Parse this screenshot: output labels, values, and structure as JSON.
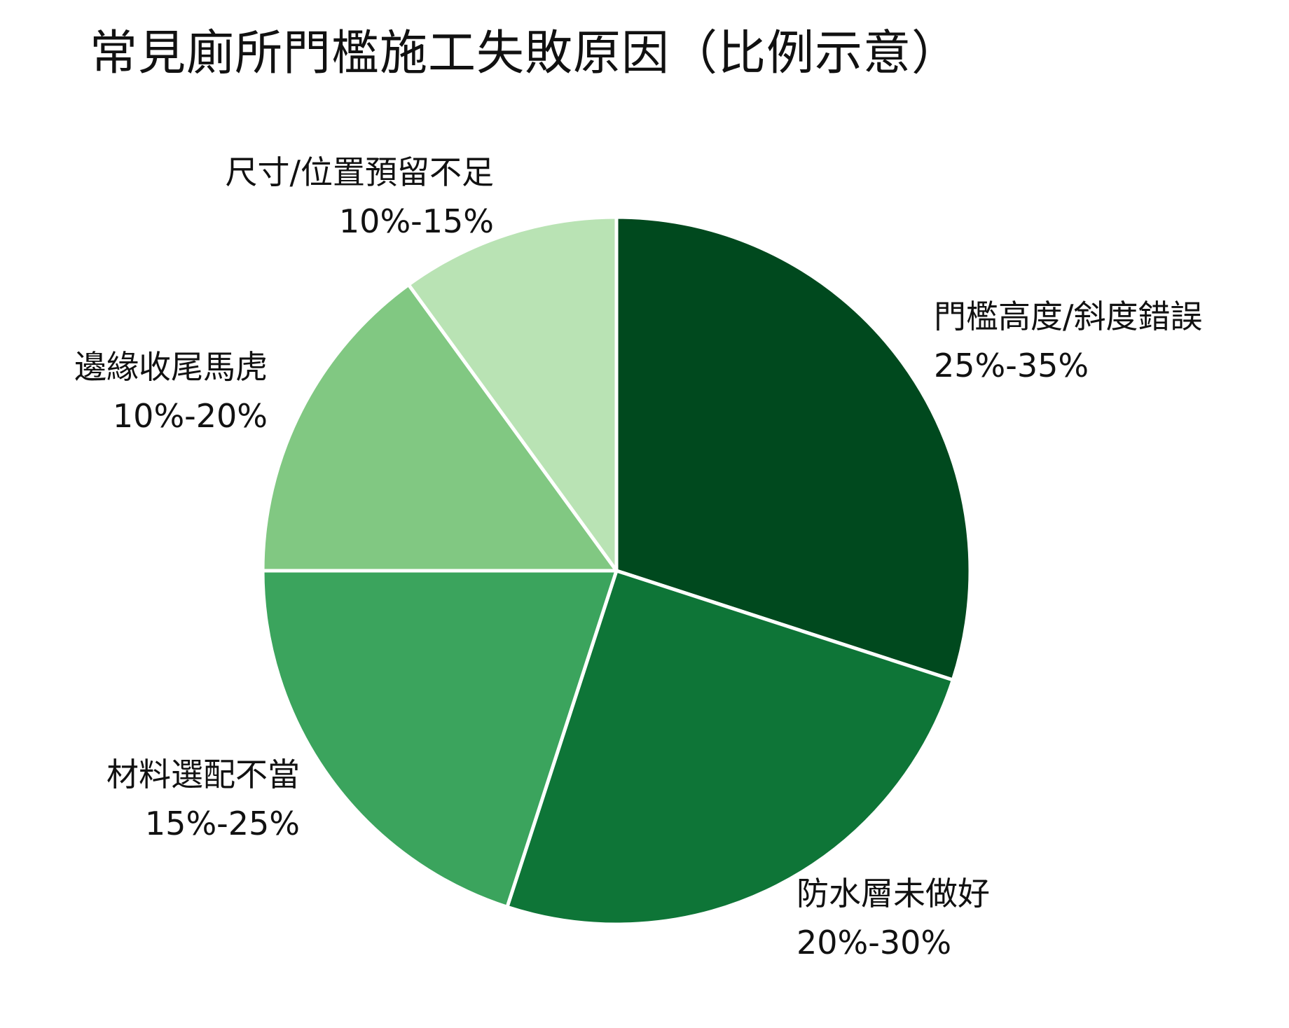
{
  "chart_data": {
    "type": "pie",
    "title": "常見廁所門檻施工失敗原因（比例示意）",
    "slices": [
      {
        "name": "門檻高度/斜度錯誤",
        "range": "25%-35%",
        "value": 30,
        "color": "#00491e"
      },
      {
        "name": "防水層未做好",
        "range": "20%-30%",
        "value": 25,
        "color": "#0e7537"
      },
      {
        "name": "材料選配不當",
        "range": "15%-25%",
        "value": 20,
        "color": "#3ba45d"
      },
      {
        "name": "邊緣收尾馬虎",
        "range": "10%-20%",
        "value": 15,
        "color": "#81c882"
      },
      {
        "name": "尺寸/位置預留不足",
        "range": "10%-15%",
        "value": 10,
        "color": "#b9e3b4"
      }
    ],
    "start_angle": "12 o'clock",
    "direction": "clockwise",
    "legend": "none"
  }
}
